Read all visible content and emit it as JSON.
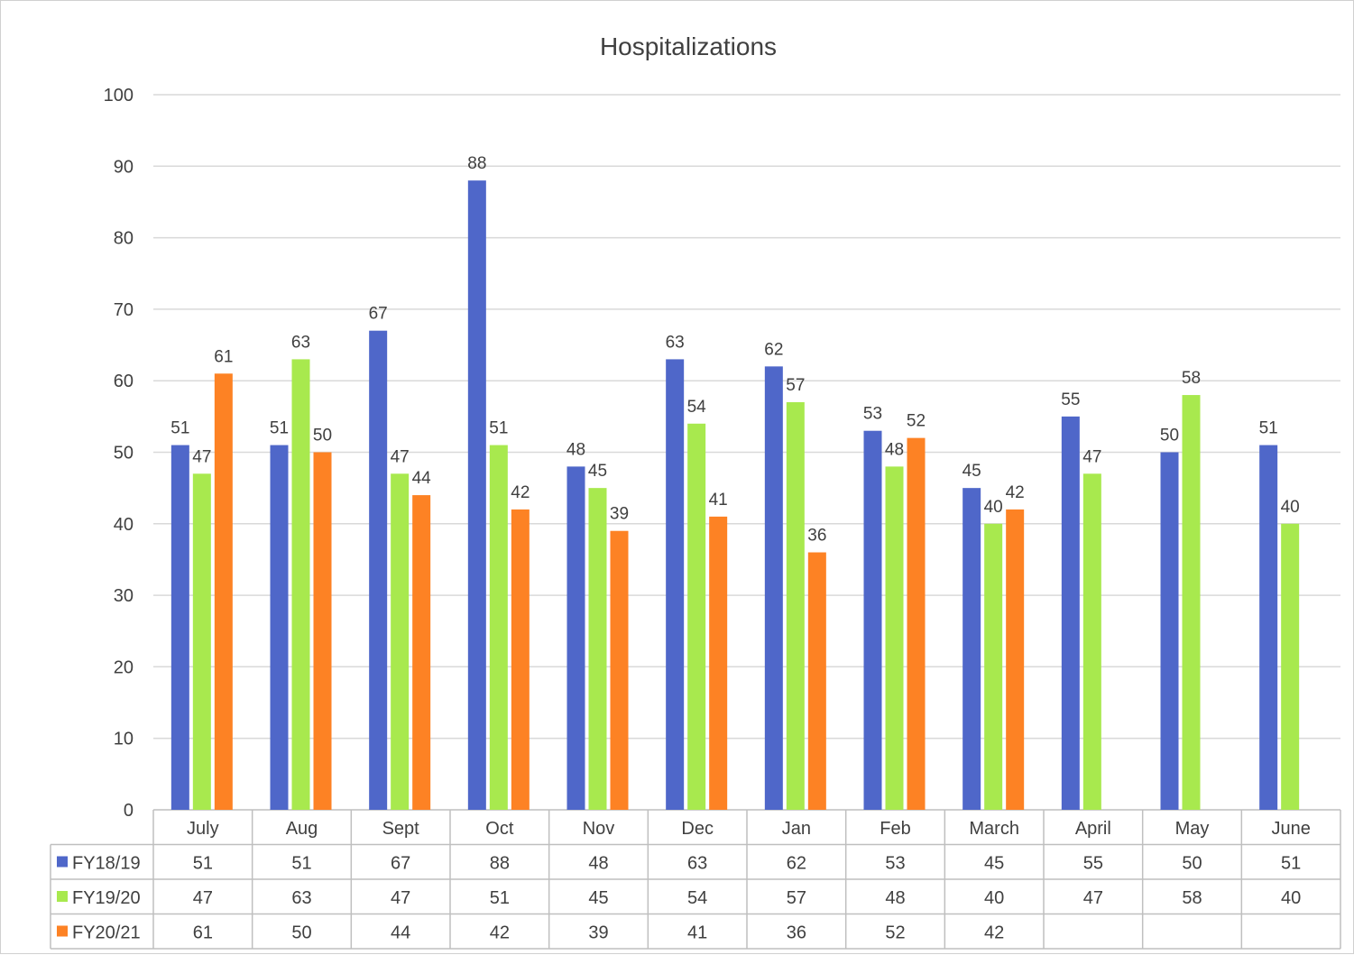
{
  "chart_data": {
    "type": "bar",
    "title": "Hospitalizations",
    "categories": [
      "July",
      "Aug",
      "Sept",
      "Oct",
      "Nov",
      "Dec",
      "Jan",
      "Feb",
      "March",
      "April",
      "May",
      "June"
    ],
    "ylim": [
      0,
      100
    ],
    "yticks": [
      0,
      10,
      20,
      30,
      40,
      50,
      60,
      70,
      80,
      90,
      100
    ],
    "grid": true,
    "legend": "data-table",
    "series": [
      {
        "name": "FY18/19",
        "color": "#4f67c9",
        "values": [
          51,
          51,
          67,
          88,
          48,
          63,
          62,
          53,
          45,
          55,
          50,
          51
        ]
      },
      {
        "name": "FY19/20",
        "color": "#a8e94e",
        "values": [
          47,
          63,
          47,
          51,
          45,
          54,
          57,
          48,
          40,
          47,
          58,
          40
        ]
      },
      {
        "name": "FY20/21",
        "color": "#fd8224",
        "values": [
          61,
          50,
          44,
          42,
          39,
          41,
          36,
          52,
          42,
          null,
          null,
          null
        ]
      }
    ]
  }
}
